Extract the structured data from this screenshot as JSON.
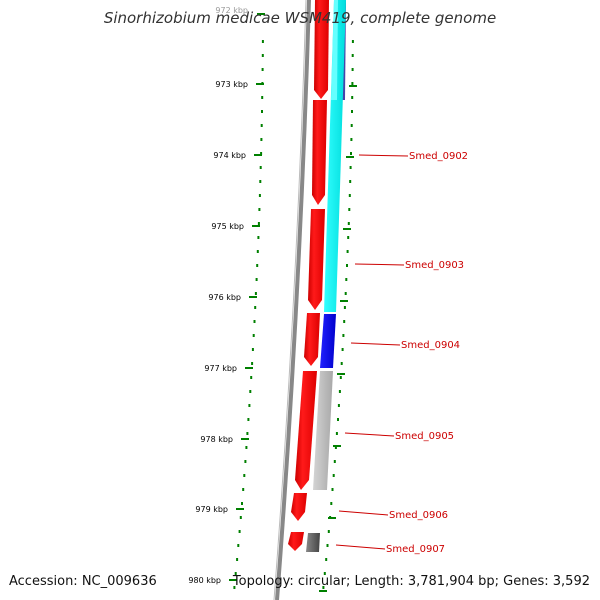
{
  "title": "Sinorhizobium medicae WSM419, complete genome",
  "accession": "Accession: NC_009636",
  "topology": "Topology: circular; Length: 3,781,904 bp; Genes: 3,592",
  "ticks": [
    "972 kbp",
    "973 kbp",
    "974 kbp",
    "975 kbp",
    "976 kbp",
    "977 kbp",
    "978 kbp",
    "979 kbp",
    "980 kbp"
  ],
  "genes": [
    "Smed_0902",
    "Smed_0903",
    "Smed_0904",
    "Smed_0905",
    "Smed_0906",
    "Smed_0907"
  ],
  "colors": {
    "cds": "#ff0000",
    "cyan_feature": "#00ffff",
    "blue_feature": "#0000ff",
    "gray_feature": "#bbbbbb",
    "dark_feature": "#666666",
    "tick": "#008000",
    "label": "#cc0000",
    "backbone": "#888888"
  }
}
